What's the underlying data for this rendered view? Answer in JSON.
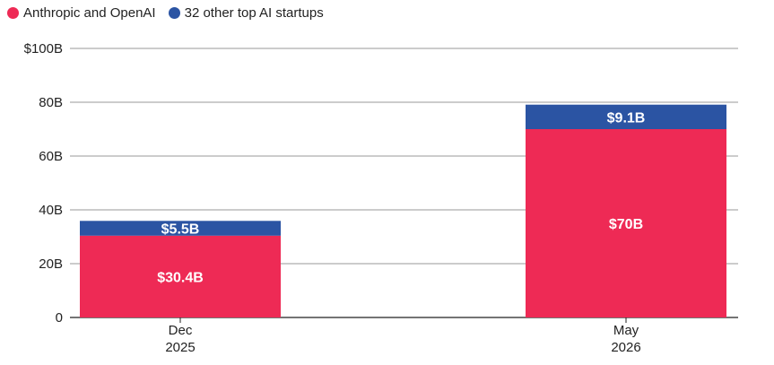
{
  "legend": {
    "items": [
      {
        "label": "Anthropic and OpenAI",
        "color": "#ee2a55"
      },
      {
        "label": "32 other top AI startups",
        "color": "#2b54a3"
      }
    ]
  },
  "chart_data": {
    "type": "bar",
    "stacked": true,
    "categories": [
      [
        "Dec",
        "2025"
      ],
      [
        "May",
        "2026"
      ]
    ],
    "series": [
      {
        "name": "Anthropic and OpenAI",
        "values": [
          30.4,
          70
        ],
        "labels": [
          "$30.4B",
          "$70B"
        ],
        "color": "#ee2a55"
      },
      {
        "name": "32 other top AI startups",
        "values": [
          5.5,
          9.1
        ],
        "labels": [
          "$5.5B",
          "$9.1B"
        ],
        "color": "#2b54a3"
      }
    ],
    "y_ticks": [
      {
        "value": 0,
        "label": "0"
      },
      {
        "value": 20,
        "label": "20B"
      },
      {
        "value": 40,
        "label": "40B"
      },
      {
        "value": 60,
        "label": "60B"
      },
      {
        "value": 80,
        "label": "80B"
      },
      {
        "value": 100,
        "label": "$100B"
      }
    ],
    "ylim": [
      0,
      100
    ],
    "grid": true,
    "legend_position": "top-left"
  }
}
